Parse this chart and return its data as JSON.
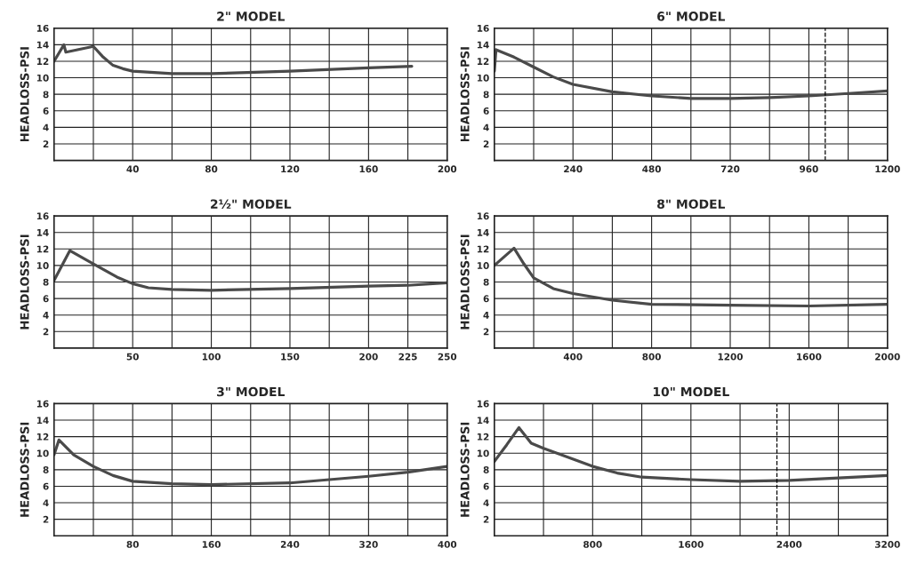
{
  "chart_data": [
    {
      "type": "line",
      "title": "2\" MODEL",
      "ylabel": "HEADLOSS-PSI",
      "grid": true,
      "line_style": "solid",
      "xlim": [
        0,
        200
      ],
      "ylim": [
        0,
        16
      ],
      "xticks": [
        {
          "value": 20,
          "label": null
        },
        40,
        {
          "value": 60,
          "label": null
        },
        80,
        {
          "value": 100,
          "label": null
        },
        120,
        {
          "value": 140,
          "label": null
        },
        160,
        {
          "value": 180,
          "label": null
        },
        200
      ],
      "yticks": [
        2,
        4,
        6,
        8,
        10,
        12,
        14,
        16
      ],
      "series": [
        {
          "color": "#4a4a4a",
          "x": [
            0,
            5,
            6,
            20,
            25,
            30,
            35,
            40,
            60,
            80,
            120,
            160,
            182
          ],
          "values": [
            12.0,
            14.0,
            13.1,
            13.8,
            12.5,
            11.5,
            11.1,
            10.8,
            10.5,
            10.5,
            10.8,
            11.2,
            11.4
          ]
        }
      ]
    },
    {
      "type": "line",
      "title": "6\" MODEL",
      "ylabel": "HEADLOSS-PSI",
      "grid": true,
      "line_style": "solid",
      "xlim": [
        0,
        1200
      ],
      "ylim": [
        0,
        16
      ],
      "xticks": [
        {
          "value": 120,
          "label": null
        },
        240,
        {
          "value": 360,
          "label": null
        },
        480,
        {
          "value": 600,
          "label": null
        },
        720,
        {
          "value": 840,
          "label": null
        },
        960,
        {
          "value": 1080,
          "label": null
        },
        1200
      ],
      "yticks": [
        2,
        4,
        6,
        8,
        10,
        12,
        14,
        16
      ],
      "ref_lines": [
        {
          "axis": "x",
          "value": 1010,
          "line_style": "dashed",
          "color": "#000000"
        }
      ],
      "series": [
        {
          "color": "#4a4a4a",
          "x": [
            0,
            5,
            60,
            120,
            180,
            240,
            360,
            480,
            600,
            720,
            840,
            960,
            1080,
            1200
          ],
          "values": [
            10.8,
            13.4,
            12.5,
            11.3,
            10.1,
            9.2,
            8.3,
            7.8,
            7.5,
            7.5,
            7.6,
            7.8,
            8.1,
            8.4
          ]
        }
      ]
    },
    {
      "type": "line",
      "title": "2½\" MODEL",
      "ylabel": "HEADLOSS-PSI",
      "grid": true,
      "line_style": "solid",
      "xlim": [
        0,
        250
      ],
      "ylim": [
        0,
        16
      ],
      "xticks": [
        {
          "value": 25,
          "label": null
        },
        50,
        {
          "value": 75,
          "label": null
        },
        100,
        {
          "value": 125,
          "label": null
        },
        150,
        {
          "value": 175,
          "label": null
        },
        200,
        225,
        250
      ],
      "yticks": [
        2,
        4,
        6,
        8,
        10,
        12,
        14,
        16
      ],
      "series": [
        {
          "color": "#4a4a4a",
          "x": [
            0,
            10,
            25,
            40,
            50,
            60,
            75,
            100,
            150,
            200,
            225,
            250
          ],
          "values": [
            8.2,
            11.8,
            10.2,
            8.6,
            7.8,
            7.3,
            7.1,
            7.0,
            7.2,
            7.5,
            7.6,
            7.9
          ]
        }
      ]
    },
    {
      "type": "line",
      "title": "8\" MODEL",
      "ylabel": "HEADLOSS-PSI",
      "grid": true,
      "line_style": "solid",
      "xlim": [
        0,
        2000
      ],
      "ylim": [
        0,
        16
      ],
      "xticks": [
        {
          "value": 200,
          "label": null
        },
        400,
        {
          "value": 600,
          "label": null
        },
        800,
        {
          "value": 1000,
          "label": null
        },
        1200,
        {
          "value": 1400,
          "label": null
        },
        1600,
        {
          "value": 1800,
          "label": null
        },
        2000
      ],
      "yticks": [
        2,
        4,
        6,
        8,
        10,
        12,
        14,
        16
      ],
      "series": [
        {
          "color": "#4a4a4a",
          "x": [
            0,
            100,
            150,
            200,
            300,
            400,
            600,
            800,
            1200,
            1600,
            2000
          ],
          "values": [
            10.0,
            12.1,
            10.2,
            8.5,
            7.2,
            6.6,
            5.8,
            5.3,
            5.2,
            5.1,
            5.3
          ]
        }
      ]
    },
    {
      "type": "line",
      "title": "3\" MODEL",
      "ylabel": "HEADLOSS-PSI",
      "grid": true,
      "line_style": "solid",
      "xlim": [
        0,
        400
      ],
      "ylim": [
        0,
        16
      ],
      "xticks": [
        {
          "value": 40,
          "label": null
        },
        80,
        {
          "value": 120,
          "label": null
        },
        160,
        {
          "value": 200,
          "label": null
        },
        240,
        {
          "value": 280,
          "label": null
        },
        320,
        {
          "value": 360,
          "label": null
        },
        400
      ],
      "yticks": [
        2,
        4,
        6,
        8,
        10,
        12,
        14,
        16
      ],
      "series": [
        {
          "color": "#4a4a4a",
          "x": [
            0,
            5,
            20,
            40,
            60,
            80,
            120,
            160,
            240,
            280,
            320,
            360,
            400
          ],
          "values": [
            9.8,
            11.6,
            9.8,
            8.4,
            7.3,
            6.6,
            6.3,
            6.2,
            6.4,
            6.8,
            7.2,
            7.7,
            8.4
          ]
        }
      ]
    },
    {
      "type": "line",
      "title": "10\" MODEL",
      "ylabel": "HEADLOSS-PSI",
      "grid": true,
      "line_style": "solid",
      "xlim": [
        0,
        3200
      ],
      "ylim": [
        0,
        16
      ],
      "xticks": [
        {
          "value": 400,
          "label": null
        },
        800,
        {
          "value": 1200,
          "label": null
        },
        1600,
        {
          "value": 2000,
          "label": null
        },
        2400,
        {
          "value": 2800,
          "label": null
        },
        3200
      ],
      "yticks": [
        2,
        4,
        6,
        8,
        10,
        12,
        14,
        16
      ],
      "ref_lines": [
        {
          "axis": "x",
          "value": 2300,
          "line_style": "dashed",
          "color": "#000000"
        }
      ],
      "series": [
        {
          "color": "#4a4a4a",
          "x": [
            0,
            100,
            200,
            300,
            400,
            800,
            1000,
            1200,
            1600,
            2000,
            2400,
            2800,
            3200
          ],
          "values": [
            9.0,
            11.0,
            13.1,
            11.2,
            10.6,
            8.4,
            7.6,
            7.1,
            6.8,
            6.6,
            6.7,
            7.0,
            7.3
          ]
        }
      ]
    }
  ]
}
